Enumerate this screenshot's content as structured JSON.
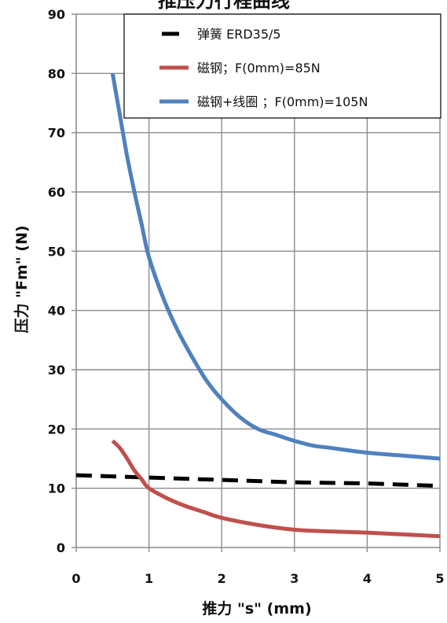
{
  "chart_data": {
    "type": "line",
    "title": "推压力行程曲线",
    "xlabel": "推力 \"s\" (mm)",
    "ylabel": "压力 \"Fm\" (N)",
    "xlim": [
      0,
      5
    ],
    "ylim": [
      0,
      90
    ],
    "x_ticks": [
      "0",
      "1",
      "2",
      "3",
      "4",
      "5"
    ],
    "y_ticks": [
      "0",
      "10",
      "20",
      "30",
      "40",
      "50",
      "60",
      "70",
      "80",
      "90"
    ],
    "grid": true,
    "legend_position": "top-right",
    "series": [
      {
        "name": "弹簧 ERD35/5",
        "color": "#000000",
        "dash": true,
        "x": [
          0,
          0.5,
          1,
          1.5,
          2,
          2.5,
          3,
          3.5,
          4,
          4.5,
          5
        ],
        "y": [
          12.2,
          12.0,
          11.8,
          11.6,
          11.4,
          11.2,
          11.0,
          10.9,
          10.8,
          10.6,
          10.4
        ]
      },
      {
        "name": "磁钢；F(0mm)=85N",
        "color": "#c0504d",
        "dash": false,
        "x": [
          0.5,
          0.6,
          0.7,
          0.8,
          0.9,
          1.0,
          1.25,
          1.5,
          1.75,
          2.0,
          2.5,
          3.0,
          3.5,
          4.0,
          4.5,
          5.0
        ],
        "y": [
          18,
          16.8,
          15,
          13,
          11.5,
          10,
          8.3,
          7,
          6,
          5,
          3.8,
          3,
          2.7,
          2.5,
          2.2,
          1.9
        ]
      },
      {
        "name": "磁钢+线圈 ；F(0mm)=105N",
        "color": "#4f81bd",
        "dash": false,
        "x": [
          0.5,
          0.6,
          0.7,
          0.8,
          0.9,
          1.0,
          1.2,
          1.4,
          1.6,
          1.8,
          2.0,
          2.25,
          2.5,
          2.75,
          3.0,
          3.25,
          3.5,
          4.0,
          4.5,
          5.0
        ],
        "y": [
          80,
          73,
          66,
          60,
          54.5,
          49,
          42,
          36.5,
          32,
          28,
          25,
          22,
          20,
          19,
          18,
          17.2,
          16.8,
          16,
          15.5,
          15
        ]
      }
    ]
  }
}
